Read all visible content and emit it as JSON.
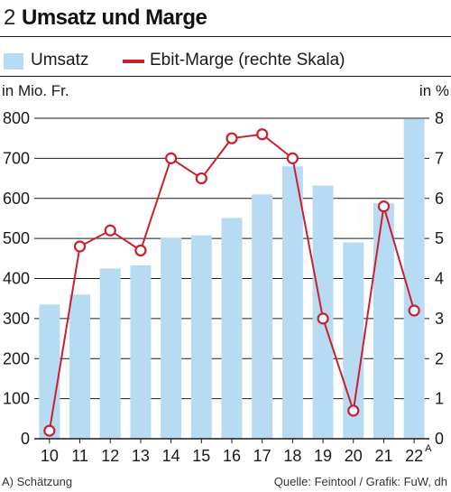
{
  "header": {
    "number": "2",
    "title": "Umsatz und Marge"
  },
  "legend": {
    "bar_label": "Umsatz",
    "line_label": "Ebit-Marge (rechte Skala)"
  },
  "colors": {
    "bar": "#b8dbf4",
    "line": "#cc1f2d",
    "grid": "#1a1a1a"
  },
  "footer": {
    "left": "A) Schätzung",
    "right": "Quelle: Feintool / Grafik: FuW, dh"
  },
  "chart_data": {
    "type": "bar",
    "categories": [
      "10",
      "11",
      "12",
      "13",
      "14",
      "15",
      "16",
      "17",
      "18",
      "19",
      "20",
      "21",
      "22"
    ],
    "category_superscript": {
      "index": 12,
      "text": "A"
    },
    "ylabel_left": "in Mio. Fr.",
    "ylabel_right": "in %",
    "ylim_left": [
      0,
      800
    ],
    "yticks_left": [
      "0",
      "100",
      "200",
      "300",
      "400",
      "500",
      "600",
      "700",
      "800"
    ],
    "ylim_right": [
      0,
      8
    ],
    "yticks_right": [
      "0",
      "1",
      "2",
      "3",
      "4",
      "5",
      "6",
      "7",
      "8"
    ],
    "grid": true,
    "series": [
      {
        "name": "Umsatz",
        "type": "bar",
        "axis": "left",
        "values": [
          335,
          360,
          425,
          433,
          502,
          508,
          551,
          610,
          680,
          632,
          490,
          588,
          798
        ]
      },
      {
        "name": "Ebit-Marge (rechte Skala)",
        "type": "line",
        "axis": "right",
        "values": [
          0.2,
          4.8,
          5.2,
          4.7,
          7.0,
          6.5,
          7.5,
          7.6,
          7.0,
          3.0,
          0.7,
          5.8,
          3.2
        ]
      }
    ]
  }
}
